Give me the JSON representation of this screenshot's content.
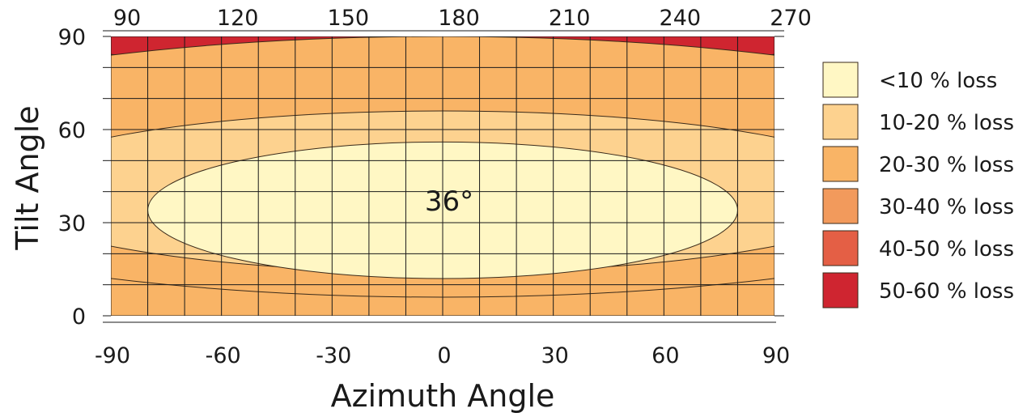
{
  "chart_data": {
    "type": "heatmap",
    "title": "",
    "xlabel": "Azimuth Angle",
    "ylabel": "Tilt Angle",
    "x_bottom_ticks": [
      "-90",
      "-60",
      "-30",
      "0",
      "30",
      "60",
      "90"
    ],
    "x_top_ticks": [
      "90",
      "120",
      "150",
      "180",
      "210",
      "240",
      "270"
    ],
    "y_ticks": [
      "0",
      "30",
      "60",
      "90"
    ],
    "xlim": [
      -90,
      90
    ],
    "ylim": [
      0,
      90
    ],
    "grid": true,
    "grid_step": {
      "x": 10,
      "y": 10
    },
    "legend_placement": "right",
    "optimum": {
      "azimuth": 0,
      "tilt": 36,
      "label": "36°"
    },
    "legend": [
      {
        "label": "<10 % loss",
        "color": "#fff7c4"
      },
      {
        "label": "10-20 % loss",
        "color": "#fdd28f"
      },
      {
        "label": "20-30 % loss",
        "color": "#f9b466"
      },
      {
        "label": "30-40 % loss",
        "color": "#f29a5c"
      },
      {
        "label": "40-50 % loss",
        "color": "#e45f45"
      },
      {
        "label": "50-60 % loss",
        "color": "#cf2530"
      }
    ],
    "contours": [
      {
        "level": "<10 % loss",
        "center": [
          0,
          34
        ],
        "half_width": 40,
        "half_height": 22
      },
      {
        "level": "10-20 % loss",
        "center": [
          0,
          40
        ],
        "half_width": 61,
        "half_height": 26
      },
      {
        "level": "20-30 % loss",
        "center": [
          0,
          48
        ],
        "half_width": 87,
        "half_height": 42
      },
      {
        "level": "30-40 % loss",
        "center": [
          0,
          81
        ],
        "half_width": 97,
        "half_height": 60
      },
      {
        "level": "40-50 % loss",
        "center": [
          0,
          125
        ],
        "half_width": 98,
        "half_height": 70
      },
      {
        "level": "50-60 % loss",
        "center": [
          0,
          125
        ],
        "half_width": 85,
        "half_height": 48
      }
    ]
  }
}
